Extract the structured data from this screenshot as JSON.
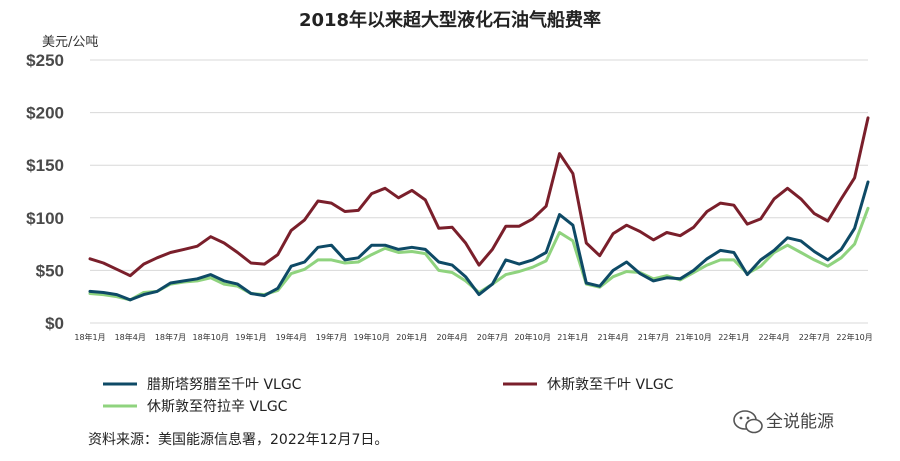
{
  "chart_data": {
    "type": "line",
    "title": "2018年以来超大型液化石油气船费率",
    "ylabel": "美元/公吨",
    "ylim": [
      0,
      250
    ],
    "yticks": [
      0,
      50,
      100,
      150,
      200,
      250
    ],
    "ytick_labels": [
      "$0",
      "$50",
      "$100",
      "$150",
      "$200",
      "$250"
    ],
    "grid": true,
    "legend_position": "bottom",
    "x": [
      "18年1月",
      "18年2月",
      "18年3月",
      "18年4月",
      "18年5月",
      "18年6月",
      "18年7月",
      "18年8月",
      "18年9月",
      "18年10月",
      "18年11月",
      "18年12月",
      "19年1月",
      "19年2月",
      "19年3月",
      "19年4月",
      "19年5月",
      "19年6月",
      "19年7月",
      "19年8月",
      "19年9月",
      "19年10月",
      "19年11月",
      "19年12月",
      "20年1月",
      "20年2月",
      "20年3月",
      "20年4月",
      "20年5月",
      "20年6月",
      "20年7月",
      "20年8月",
      "20年9月",
      "20年10月",
      "20年11月",
      "20年12月",
      "21年1月",
      "21年2月",
      "21年3月",
      "21年4月",
      "21年5月",
      "21年6月",
      "21年7月",
      "21年8月",
      "21年9月",
      "21年10月",
      "21年11月",
      "21年12月",
      "22年1月",
      "22年2月",
      "22年3月",
      "22年4月",
      "22年5月",
      "22年6月",
      "22年7月",
      "22年8月",
      "22年9月",
      "22年10月",
      "22年11月"
    ],
    "xtick_labels": [
      "18年1月",
      "18年4月",
      "18年7月",
      "18年10月",
      "19年1月",
      "19年4月",
      "19年7月",
      "19年10月",
      "20年1月",
      "20年4月",
      "20年7月",
      "20年10月",
      "21年1月",
      "21年4月",
      "21年7月",
      "21年10月",
      "22年1月",
      "22年4月",
      "22年7月",
      "22年10月"
    ],
    "series": [
      {
        "name": "腊斯塔努腊至千叶 VLGC",
        "color": "#0e4a66",
        "values": [
          30,
          29,
          27,
          22,
          27,
          30,
          38,
          40,
          42,
          46,
          40,
          37,
          28,
          26,
          33,
          54,
          58,
          72,
          74,
          60,
          62,
          74,
          74,
          70,
          72,
          70,
          58,
          55,
          44,
          27,
          37,
          60,
          56,
          60,
          67,
          103,
          93,
          38,
          35,
          50,
          58,
          47,
          40,
          43,
          42,
          50,
          61,
          69,
          67,
          46,
          60,
          69,
          81,
          78,
          68,
          60,
          70,
          90,
          134
        ]
      },
      {
        "name": "休斯敦至千叶 VLGC",
        "color": "#7a1f2b",
        "values": [
          61,
          57,
          51,
          45,
          56,
          62,
          67,
          70,
          73,
          82,
          76,
          67,
          57,
          56,
          65,
          88,
          98,
          116,
          114,
          106,
          107,
          123,
          128,
          119,
          126,
          117,
          90,
          91,
          76,
          55,
          70,
          92,
          92,
          99,
          111,
          161,
          142,
          76,
          64,
          85,
          93,
          87,
          79,
          86,
          83,
          91,
          106,
          114,
          112,
          94,
          99,
          118,
          128,
          118,
          104,
          97,
          118,
          138,
          195
        ]
      },
      {
        "name": "休斯敦至符拉辛 VLGC",
        "color": "#8fd37e",
        "values": [
          28,
          27,
          25,
          22,
          29,
          30,
          37,
          39,
          40,
          43,
          37,
          35,
          28,
          27,
          31,
          47,
          51,
          60,
          60,
          57,
          58,
          65,
          71,
          67,
          68,
          66,
          50,
          48,
          40,
          29,
          37,
          46,
          49,
          53,
          59,
          86,
          78,
          37,
          34,
          44,
          49,
          48,
          42,
          45,
          41,
          48,
          55,
          60,
          60,
          47,
          54,
          67,
          74,
          67,
          60,
          54,
          62,
          75,
          109
        ]
      }
    ]
  },
  "legend": [
    {
      "label": "腊斯塔努腊至千叶 VLGC",
      "color": "#0e4a66"
    },
    {
      "label": "休斯敦至千叶 VLGC",
      "color": "#7a1f2b"
    },
    {
      "label": "休斯敦至符拉辛 VLGC",
      "color": "#8fd37e"
    }
  ],
  "source_note": "资料来源：美国能源信息署，2022年12月7日。",
  "watermark": {
    "text": "全说能源",
    "icon": "wechat-icon"
  }
}
